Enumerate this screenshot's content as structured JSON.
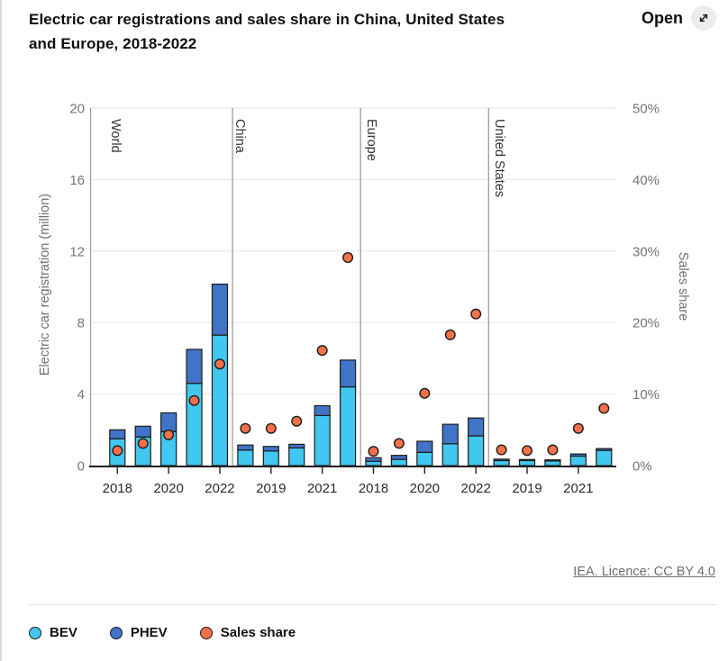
{
  "header": {
    "title_line1": "Electric car registrations and sales share in China, United States",
    "title_line2": "and Europe, 2018-2022",
    "open_label": "Open"
  },
  "footer": {
    "licence_link": "IEA. Licence: CC BY 4.0"
  },
  "legend": {
    "items": [
      {
        "label": "BEV",
        "color": "#41C7F0"
      },
      {
        "label": "PHEV",
        "color": "#4173C6"
      },
      {
        "label": "Sales share",
        "color": "#F3704A"
      }
    ]
  },
  "chart_data": {
    "type": "bar",
    "subtype": "stacked-bar-with-scatter, 4 panels on shared axes",
    "title": "Electric car registrations and sales share in China, United States and Europe, 2018-2022",
    "left_axis": {
      "label": "Electric car registration (million)",
      "ticks": [
        0,
        4,
        8,
        12,
        16,
        20
      ],
      "range": [
        0,
        20
      ],
      "grid": true
    },
    "right_axis": {
      "label": "Sales share",
      "ticks": [
        "0%",
        "10%",
        "20%",
        "30%",
        "40%",
        "50%"
      ],
      "range": [
        0,
        50
      ]
    },
    "x_tick_labels_visible": [
      "2018",
      "2020",
      "2022",
      "2019",
      "2021",
      "2018",
      "2020",
      "2022",
      "2019",
      "2021"
    ],
    "series_names": [
      "BEV",
      "PHEV",
      "Sales share"
    ],
    "panels": [
      {
        "label": "World",
        "years": [
          "2018",
          "2019",
          "2020",
          "2021",
          "2022"
        ],
        "bev": [
          1.5,
          1.6,
          1.9,
          4.6,
          7.3
        ],
        "phev": [
          0.5,
          0.6,
          1.05,
          1.9,
          2.85
        ],
        "sales_share_pct": [
          2.1,
          3.1,
          4.3,
          9.1,
          14.2
        ]
      },
      {
        "label": "China",
        "years": [
          "2018",
          "2019",
          "2020",
          "2021",
          "2022"
        ],
        "bev": [
          0.87,
          0.82,
          0.99,
          2.8,
          4.4
        ],
        "phev": [
          0.28,
          0.25,
          0.2,
          0.55,
          1.5
        ],
        "sales_share_pct": [
          5.2,
          5.2,
          6.2,
          16.1,
          29.1
        ]
      },
      {
        "label": "Europe",
        "years": [
          "2018",
          "2019",
          "2020",
          "2021",
          "2022"
        ],
        "bev": [
          0.24,
          0.35,
          0.74,
          1.22,
          1.66
        ],
        "phev": [
          0.2,
          0.22,
          0.62,
          1.09,
          1.0
        ],
        "sales_share_pct": [
          2.0,
          3.1,
          10.1,
          18.3,
          21.2
        ]
      },
      {
        "label": "United States",
        "years": [
          "2018",
          "2019",
          "2020",
          "2021",
          "2022"
        ],
        "bev": [
          0.28,
          0.28,
          0.26,
          0.53,
          0.85
        ],
        "phev": [
          0.08,
          0.06,
          0.06,
          0.12,
          0.1
        ],
        "sales_share_pct": [
          2.2,
          2.1,
          2.2,
          5.2,
          8.0
        ]
      }
    ],
    "colors": {
      "bev": "#41C7F0",
      "phev": "#4173C6",
      "sales_share": "#F3704A",
      "outline": "#1c1c1c",
      "gridline": "#e6e6e6",
      "separator": "#9b9b9b",
      "axis_line": "#1f1f1f",
      "tick_text": "#757575"
    },
    "legend_position": "bottom-left"
  }
}
